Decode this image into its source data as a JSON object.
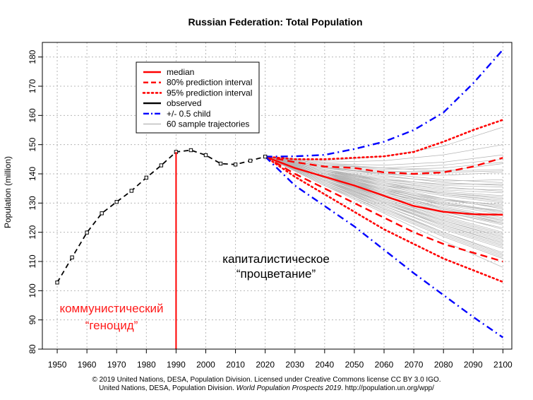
{
  "chart_data": {
    "type": "line",
    "title": "Russian Federation: Total Population",
    "xlabel": "",
    "ylabel": "Population (million)",
    "xlim": [
      1945,
      2103
    ],
    "ylim": [
      80,
      185
    ],
    "xticks": [
      1950,
      1960,
      1970,
      1980,
      1990,
      2000,
      2010,
      2020,
      2030,
      2040,
      2050,
      2060,
      2070,
      2080,
      2090,
      2100
    ],
    "yticks": [
      80,
      90,
      100,
      110,
      120,
      130,
      140,
      150,
      160,
      170,
      180
    ],
    "grid": true,
    "legend_position": "top-left",
    "series": [
      {
        "key": "observed",
        "name": "observed",
        "color": "#000000",
        "style": "dashed-markers",
        "x": [
          1950,
          1955,
          1960,
          1965,
          1970,
          1975,
          1980,
          1985,
          1990,
          1995,
          2000,
          2005,
          2010,
          2015,
          2020
        ],
        "y": [
          102.8,
          111.4,
          119.9,
          126.5,
          130.4,
          134.2,
          138.7,
          142.9,
          147.5,
          148.1,
          146.4,
          143.5,
          143.2,
          144.5,
          145.9
        ]
      },
      {
        "key": "median",
        "name": "median",
        "color": "#ff0000",
        "style": "solid",
        "x": [
          2020,
          2030,
          2040,
          2050,
          2060,
          2070,
          2080,
          2090,
          2100
        ],
        "y": [
          145.9,
          142.0,
          139.0,
          136.0,
          132.5,
          129.0,
          127.0,
          126.2,
          126.0
        ]
      },
      {
        "key": "pi80_upper",
        "name": "80% prediction interval",
        "color": "#ff0000",
        "style": "dashed",
        "x": [
          2020,
          2030,
          2040,
          2050,
          2060,
          2070,
          2080,
          2090,
          2100
        ],
        "y": [
          145.9,
          144.0,
          142.5,
          142.0,
          140.5,
          140.0,
          140.5,
          142.5,
          145.5
        ]
      },
      {
        "key": "pi80_lower",
        "name": "",
        "color": "#ff0000",
        "style": "dashed",
        "x": [
          2020,
          2030,
          2040,
          2050,
          2060,
          2070,
          2080,
          2090,
          2100
        ],
        "y": [
          145.9,
          140.0,
          135.0,
          130.0,
          125.0,
          120.0,
          116.0,
          113.0,
          110.0
        ]
      },
      {
        "key": "pi95_upper",
        "name": "95% prediction interval",
        "color": "#ff0000",
        "style": "dotted",
        "x": [
          2020,
          2030,
          2040,
          2050,
          2060,
          2070,
          2080,
          2090,
          2100
        ],
        "y": [
          145.9,
          145.0,
          145.0,
          145.5,
          146.0,
          147.5,
          151.0,
          155.0,
          158.5
        ]
      },
      {
        "key": "pi95_lower",
        "name": "",
        "color": "#ff0000",
        "style": "dotted",
        "x": [
          2020,
          2030,
          2040,
          2050,
          2060,
          2070,
          2080,
          2090,
          2100
        ],
        "y": [
          145.9,
          139.0,
          133.0,
          127.0,
          121.0,
          116.0,
          111.0,
          107.0,
          103.0
        ]
      },
      {
        "key": "child_upper",
        "name": "+/- 0.5 child",
        "color": "#0000ff",
        "style": "dashdot",
        "x": [
          2020,
          2030,
          2040,
          2050,
          2060,
          2070,
          2080,
          2090,
          2100
        ],
        "y": [
          145.9,
          146.0,
          146.5,
          148.5,
          151.0,
          155.0,
          161.0,
          171.0,
          182.5
        ]
      },
      {
        "key": "child_lower",
        "name": "",
        "color": "#0000ff",
        "style": "dashdot",
        "x": [
          2020,
          2030,
          2040,
          2050,
          2060,
          2070,
          2080,
          2090,
          2100
        ],
        "y": [
          145.9,
          136.0,
          129.0,
          122.0,
          114.0,
          106.0,
          98.5,
          91.0,
          84.0
        ]
      }
    ],
    "trajectories": {
      "name": "60 sample trajectories",
      "color": "#b3b3b3",
      "x": [
        2020,
        2040,
        2060,
        2080,
        2100
      ],
      "lines": [
        [
          145.9,
          141.5,
          137.0,
          133.0,
          130.5
        ],
        [
          145.9,
          140.0,
          135.0,
          130.5,
          127.0
        ],
        [
          145.9,
          142.5,
          140.0,
          138.0,
          137.0
        ],
        [
          145.9,
          139.0,
          132.5,
          127.0,
          122.5
        ],
        [
          145.9,
          138.0,
          130.0,
          122.0,
          115.5
        ],
        [
          145.9,
          143.5,
          143.0,
          144.0,
          146.5
        ],
        [
          145.9,
          140.5,
          136.5,
          133.0,
          131.0
        ],
        [
          145.9,
          137.5,
          129.0,
          121.5,
          115.0
        ],
        [
          145.9,
          141.0,
          137.5,
          135.0,
          134.5
        ],
        [
          145.9,
          139.5,
          133.0,
          128.0,
          124.0
        ],
        [
          145.9,
          142.0,
          139.0,
          137.5,
          138.0
        ],
        [
          145.9,
          138.5,
          131.5,
          125.0,
          119.5
        ],
        [
          145.9,
          140.0,
          134.5,
          129.0,
          125.0
        ],
        [
          145.9,
          136.5,
          127.0,
          118.5,
          111.0
        ],
        [
          145.9,
          143.0,
          141.5,
          142.0,
          144.0
        ],
        [
          145.9,
          139.0,
          133.5,
          129.5,
          127.5
        ],
        [
          145.9,
          141.0,
          136.0,
          131.5,
          128.0
        ],
        [
          145.9,
          137.0,
          128.5,
          120.0,
          112.5
        ],
        [
          145.9,
          142.0,
          140.5,
          141.0,
          143.5
        ],
        [
          145.9,
          140.5,
          135.5,
          131.0,
          128.5
        ],
        [
          145.9,
          138.0,
          131.0,
          124.0,
          118.5
        ],
        [
          145.9,
          139.5,
          134.0,
          130.0,
          126.5
        ],
        [
          145.9,
          141.5,
          138.5,
          136.0,
          135.5
        ],
        [
          145.9,
          137.5,
          130.0,
          123.0,
          117.0
        ],
        [
          145.9,
          144.5,
          146.0,
          149.5,
          156.0
        ],
        [
          145.9,
          140.0,
          133.5,
          128.5,
          124.5
        ],
        [
          145.9,
          138.5,
          132.0,
          126.5,
          121.0
        ],
        [
          145.9,
          141.0,
          137.0,
          134.0,
          132.5
        ],
        [
          145.9,
          136.0,
          126.5,
          117.0,
          108.0
        ],
        [
          145.9,
          142.5,
          139.5,
          137.0,
          136.0
        ],
        [
          145.9,
          139.0,
          132.0,
          126.0,
          121.5
        ],
        [
          145.9,
          140.5,
          136.0,
          132.5,
          130.0
        ],
        [
          145.9,
          137.5,
          129.5,
          122.5,
          116.0
        ],
        [
          145.9,
          143.5,
          142.0,
          141.0,
          141.5
        ],
        [
          145.9,
          139.5,
          133.5,
          128.5,
          124.0
        ],
        [
          145.9,
          138.0,
          130.5,
          123.5,
          117.5
        ],
        [
          145.9,
          141.5,
          138.0,
          135.5,
          134.0
        ],
        [
          145.9,
          140.0,
          135.0,
          131.5,
          129.0
        ],
        [
          145.9,
          136.5,
          128.0,
          120.0,
          113.0
        ],
        [
          145.9,
          142.0,
          140.0,
          139.5,
          140.5
        ],
        [
          145.9,
          139.0,
          131.5,
          125.5,
          120.0
        ],
        [
          145.9,
          140.5,
          134.5,
          129.5,
          126.0
        ],
        [
          145.9,
          138.5,
          131.0,
          124.5,
          119.0
        ],
        [
          145.9,
          141.0,
          136.5,
          133.5,
          131.5
        ],
        [
          145.9,
          137.0,
          129.0,
          121.0,
          114.5
        ],
        [
          145.9,
          143.0,
          142.0,
          143.0,
          145.0
        ],
        [
          145.9,
          139.5,
          134.5,
          131.0,
          129.5
        ],
        [
          145.9,
          138.0,
          130.0,
          122.5,
          116.5
        ],
        [
          145.9,
          140.0,
          134.0,
          128.0,
          123.0
        ],
        [
          145.9,
          141.5,
          137.5,
          134.5,
          133.5
        ],
        [
          145.9,
          136.0,
          127.5,
          119.0,
          111.5
        ],
        [
          145.9,
          142.5,
          141.0,
          140.5,
          141.0
        ],
        [
          145.9,
          139.0,
          133.0,
          127.5,
          123.5
        ],
        [
          145.9,
          140.5,
          135.0,
          130.0,
          127.0
        ],
        [
          145.9,
          137.5,
          130.5,
          124.0,
          118.0
        ],
        [
          145.9,
          144.0,
          144.5,
          146.5,
          150.0
        ],
        [
          145.9,
          138.5,
          132.5,
          127.0,
          123.0
        ],
        [
          145.9,
          141.0,
          138.0,
          136.5,
          136.5
        ],
        [
          145.9,
          137.0,
          128.0,
          119.5,
          112.0
        ],
        [
          145.9,
          140.0,
          136.0,
          133.5,
          132.0
        ]
      ]
    },
    "vline": {
      "x": 1990,
      "color": "#ff0000"
    },
    "annotations": [
      {
        "key": "communism_line1",
        "text": "коммунистический",
        "color": "#ff1a1a"
      },
      {
        "key": "communism_line2",
        "text": "“геноцид”",
        "color": "#ff1a1a"
      },
      {
        "key": "capitalism_line1",
        "text": "капиталистическое",
        "color": "#000000"
      },
      {
        "key": "capitalism_line2",
        "text": "“процветание”",
        "color": "#000000"
      }
    ],
    "legend": [
      {
        "label": "median",
        "color": "#ff0000",
        "style": "solid"
      },
      {
        "label": "80% prediction interval",
        "color": "#ff0000",
        "style": "dashed"
      },
      {
        "label": "95% prediction interval",
        "color": "#ff0000",
        "style": "dotted"
      },
      {
        "label": "observed",
        "color": "#000000",
        "style": "solid"
      },
      {
        "label": "+/- 0.5 child",
        "color": "#0000ff",
        "style": "dashdot"
      },
      {
        "label": "60 sample trajectories",
        "color": "#b3b3b3",
        "style": "thin"
      }
    ]
  },
  "footer": {
    "line1": "© 2019 United Nations, DESA, Population Division. Licensed under Creative Commons license CC BY 3.0 IGO.",
    "line2_prefix": "United Nations, DESA, Population Division. ",
    "line2_italic": "World Population Prospects 2019",
    "line2_suffix": ". http://population.un.org/wpp/"
  }
}
